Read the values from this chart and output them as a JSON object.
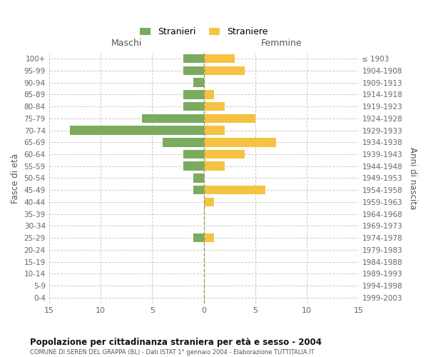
{
  "age_groups": [
    "0-4",
    "5-9",
    "10-14",
    "15-19",
    "20-24",
    "25-29",
    "30-34",
    "35-39",
    "40-44",
    "45-49",
    "50-54",
    "55-59",
    "60-64",
    "65-69",
    "70-74",
    "75-79",
    "80-84",
    "85-89",
    "90-94",
    "95-99",
    "100+"
  ],
  "birth_years": [
    "1999-2003",
    "1994-1998",
    "1989-1993",
    "1984-1988",
    "1979-1983",
    "1974-1978",
    "1969-1973",
    "1964-1968",
    "1959-1963",
    "1954-1958",
    "1949-1953",
    "1944-1948",
    "1939-1943",
    "1934-1938",
    "1929-1933",
    "1924-1928",
    "1919-1923",
    "1914-1918",
    "1909-1913",
    "1904-1908",
    "≤ 1903"
  ],
  "males": [
    -2,
    -2,
    -1,
    -2,
    -2,
    -6,
    -13,
    -4,
    -2,
    -2,
    -1,
    -1,
    0,
    0,
    0,
    -1,
    0,
    0,
    0,
    0,
    0
  ],
  "females": [
    3,
    4,
    0,
    1,
    2,
    5,
    2,
    7,
    4,
    2,
    0,
    6,
    1,
    0,
    0,
    1,
    0,
    0,
    0,
    0,
    0
  ],
  "male_color": "#7aab5e",
  "female_color": "#f5c242",
  "title": "Popolazione per cittadinanza straniera per età e sesso - 2004",
  "subtitle": "COMUNE DI SEREN DEL GRAPPA (BL) - Dati ISTAT 1° gennaio 2004 - Elaborazione TUTTITALIA.IT",
  "xlabel_left": "Maschi",
  "xlabel_right": "Femmine",
  "ylabel_left": "Fasce di età",
  "ylabel_right": "Anni di nascita",
  "legend_male": "Stranieri",
  "legend_female": "Straniere",
  "xlim": [
    -15,
    15
  ],
  "xticks": [
    -15,
    -10,
    -5,
    0,
    5,
    10,
    15
  ],
  "xticklabels": [
    "15",
    "10",
    "5",
    "0",
    "5",
    "10",
    "15"
  ],
  "bg_color": "#ffffff",
  "grid_color": "#cccccc",
  "bar_height": 0.75
}
